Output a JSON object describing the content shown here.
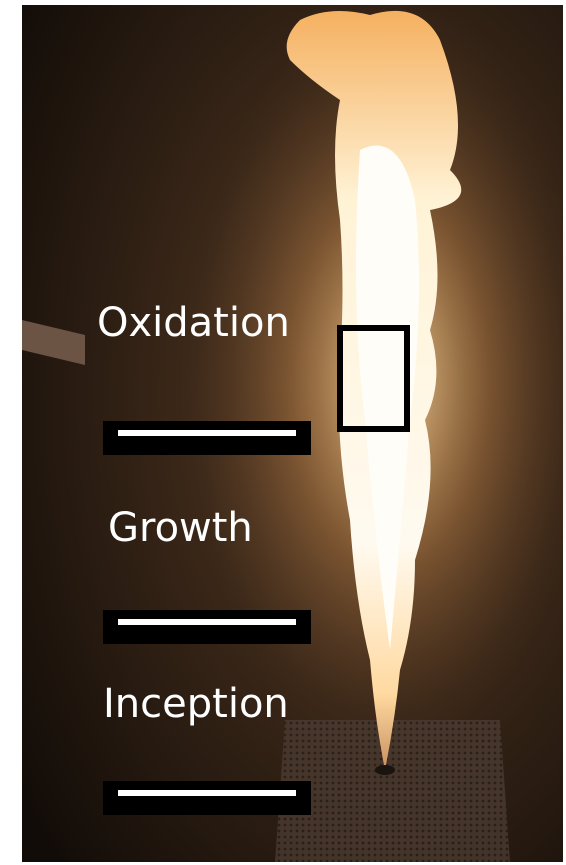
{
  "labels": [
    "Oxidation",
    "Growth",
    "Inception"
  ]
}
